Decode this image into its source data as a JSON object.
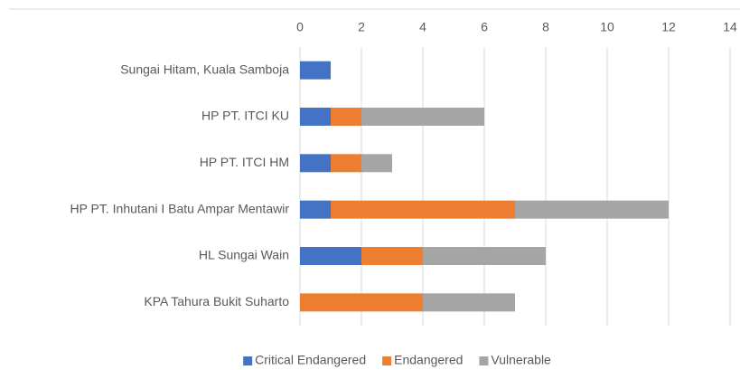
{
  "chart_data": {
    "type": "bar",
    "orientation": "horizontal",
    "stacked": true,
    "categories": [
      "Sungai Hitam, Kuala Samboja",
      "HP PT. ITCI KU",
      "HP PT. ITCI HM",
      "HP PT. Inhutani I Batu Ampar Mentawir",
      "HL Sungai Wain",
      "KPA Tahura Bukit Suharto"
    ],
    "series": [
      {
        "name": "Critical Endangered",
        "color": "#4472c4",
        "values": [
          1,
          1,
          1,
          1,
          2,
          0
        ]
      },
      {
        "name": "Endangered",
        "color": "#ed7d31",
        "values": [
          0,
          1,
          1,
          6,
          2,
          4
        ]
      },
      {
        "name": "Vulnerable",
        "color": "#a5a5a5",
        "values": [
          0,
          4,
          1,
          5,
          4,
          3
        ]
      }
    ],
    "xlim": [
      0,
      14
    ],
    "xticks": [
      0,
      2,
      4,
      6,
      8,
      10,
      12,
      14
    ],
    "grid": true,
    "legend": "bottom"
  }
}
